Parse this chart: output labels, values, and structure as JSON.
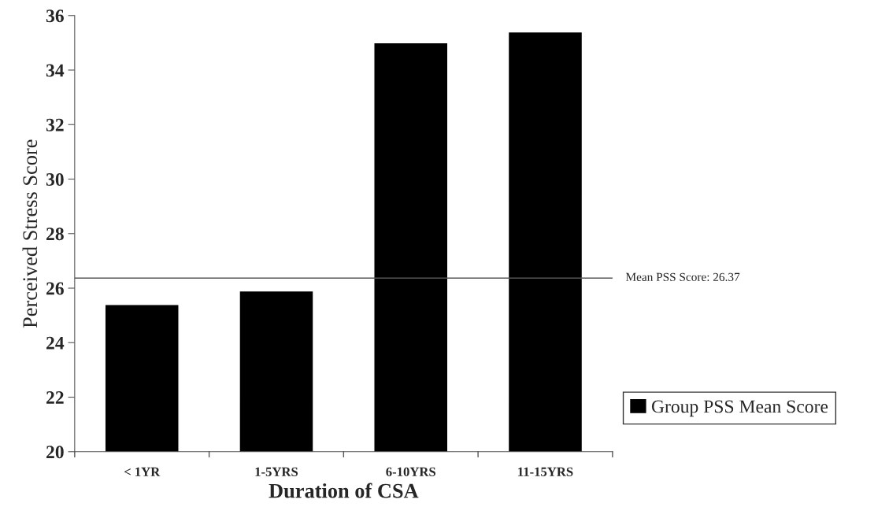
{
  "chart_data": {
    "type": "bar",
    "xlabel": "Duration of CSA",
    "ylabel": "Perceived Stress Score",
    "categories": [
      "< 1YR",
      "1-5YRS",
      "6-10YRS",
      "11-15YRS"
    ],
    "series": [
      {
        "name": "Group PSS Mean Score",
        "color": "#000000",
        "values": [
          25.4,
          25.9,
          35.0,
          35.4
        ]
      }
    ],
    "ylim": [
      20,
      36
    ],
    "yticks": [
      20,
      22,
      24,
      26,
      28,
      30,
      32,
      34,
      36
    ],
    "ref_lines": [
      {
        "axis": "y",
        "value": 26.37,
        "label": "Mean PSS Score: 26.37",
        "color": "#555555"
      }
    ],
    "legend": "right",
    "grid": false
  }
}
